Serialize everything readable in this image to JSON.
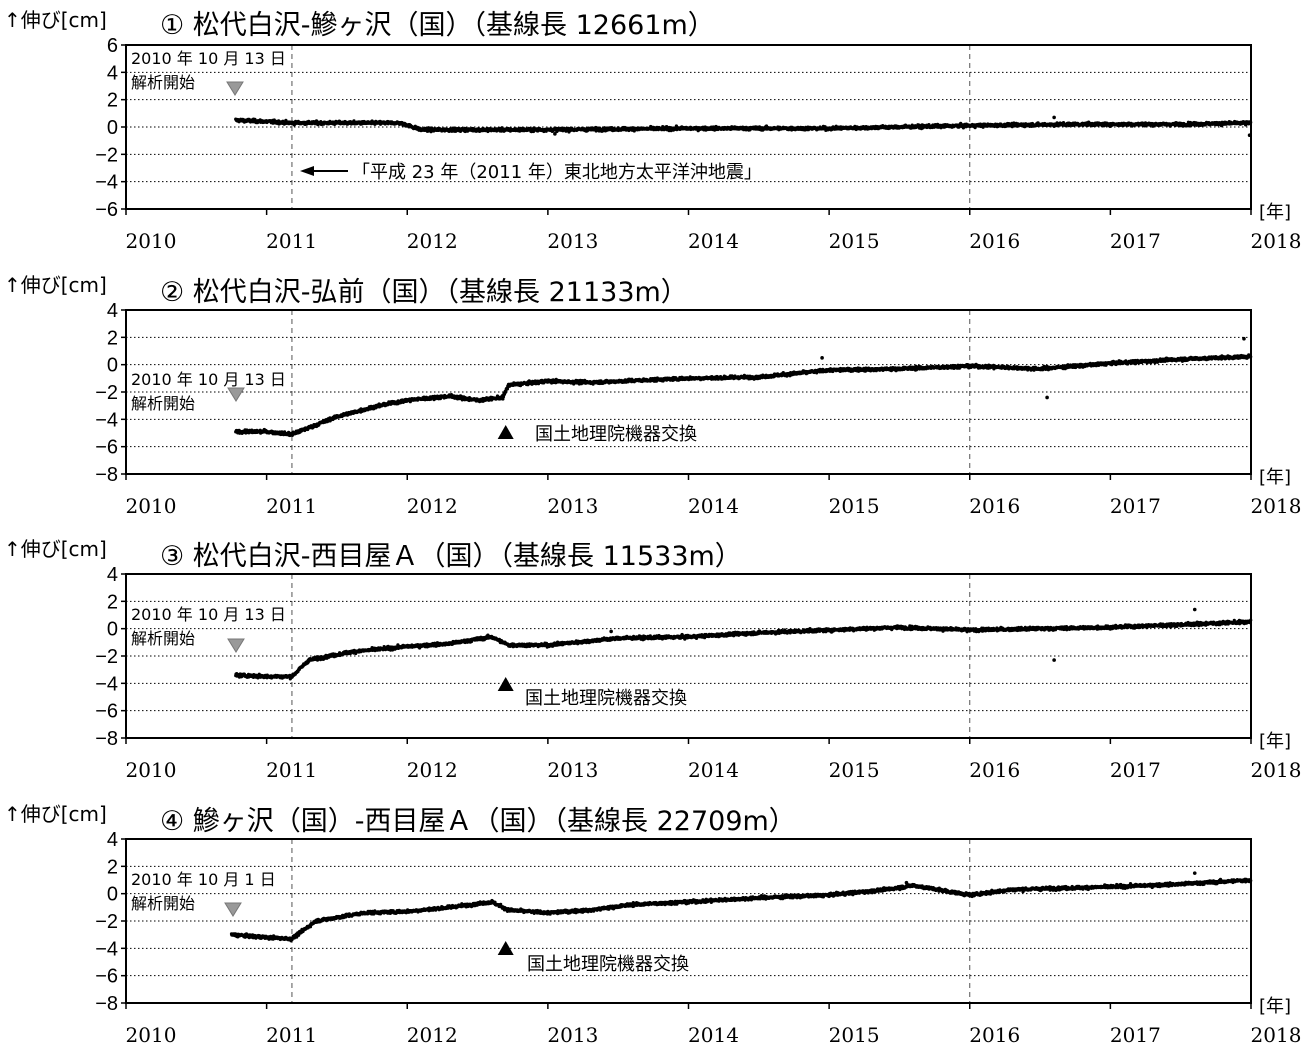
{
  "chart_data": [
    {
      "type": "scatter",
      "title": "① 松代白沢-鰺ヶ沢（国）（基線長 12661m）",
      "ylabel": "↑伸び[cm]",
      "xunit": "[年]",
      "ylim": [
        -6,
        6
      ],
      "yticks": [
        "6",
        "4",
        "2",
        "0",
        "−2",
        "−4",
        "−6"
      ],
      "xlim": [
        2010,
        2018
      ],
      "xticks": [
        "2010",
        "2011",
        "2012",
        "2013",
        "2014",
        "2015",
        "2016",
        "2017",
        "2018"
      ],
      "grid": "horizontal dotted",
      "start_date": "2010 年 10 月 13 日",
      "start_label": "解析開始",
      "event_label": "「平成 23 年（2011 年）東北地方太平洋沖地震」",
      "series": [
        {
          "x": [
            2010.78,
            2011.0,
            2011.18,
            2011.5,
            2011.95,
            2012.1,
            2013.0,
            2014.0,
            2015.0,
            2016.0,
            2016.7,
            2017.5,
            2018.0
          ],
          "y": [
            0.5,
            0.4,
            0.3,
            0.3,
            0.3,
            -0.2,
            -0.2,
            -0.1,
            -0.1,
            0.1,
            0.2,
            0.2,
            0.3
          ]
        }
      ],
      "outliers": [
        [
          2016.6,
          0.7
        ],
        [
          2013.05,
          -0.5
        ],
        [
          2017.99,
          -0.6
        ]
      ]
    },
    {
      "type": "scatter",
      "title": "② 松代白沢-弘前（国）（基線長 21133m）",
      "ylabel": "↑伸び[cm]",
      "xunit": "[年]",
      "ylim": [
        -8,
        4
      ],
      "yticks": [
        "4",
        "2",
        "0",
        "−2",
        "−4",
        "−6",
        "−8"
      ],
      "xlim": [
        2010,
        2018
      ],
      "xticks": [
        "2010",
        "2011",
        "2012",
        "2013",
        "2014",
        "2015",
        "2016",
        "2017",
        "2018"
      ],
      "grid": "horizontal dotted",
      "start_date": "2010 年 10 月 13 日",
      "start_label": "解析開始",
      "equip_label": "国土地理院機器交換",
      "equip_x": 2012.7,
      "series": [
        {
          "x": [
            2010.78,
            2011.0,
            2011.18,
            2011.5,
            2011.8,
            2012.0,
            2012.3,
            2012.5,
            2012.68,
            2012.72,
            2013.0,
            2013.3,
            2014.0,
            2014.5,
            2015.0,
            2015.5,
            2016.0,
            2016.5,
            2017.0,
            2017.5,
            2018.0
          ],
          "y": [
            -4.9,
            -4.9,
            -5.1,
            -3.8,
            -3.0,
            -2.6,
            -2.3,
            -2.6,
            -2.4,
            -1.5,
            -1.2,
            -1.3,
            -1.0,
            -0.9,
            -0.4,
            -0.3,
            -0.1,
            -0.3,
            0.1,
            0.4,
            0.6
          ]
        }
      ],
      "outliers": [
        [
          2016.55,
          -2.4
        ],
        [
          2017.95,
          1.9
        ],
        [
          2014.95,
          0.5
        ]
      ]
    },
    {
      "type": "scatter",
      "title": "③ 松代白沢-西目屋Ａ（国）（基線長 11533m）",
      "ylabel": "↑伸び[cm]",
      "xunit": "[年]",
      "ylim": [
        -8,
        4
      ],
      "yticks": [
        "4",
        "2",
        "0",
        "−2",
        "−4",
        "−6",
        "−8"
      ],
      "xlim": [
        2010,
        2018
      ],
      "xticks": [
        "2010",
        "2011",
        "2012",
        "2013",
        "2014",
        "2015",
        "2016",
        "2017",
        "2018"
      ],
      "grid": "horizontal dotted",
      "start_date": "2010 年 10 月 13 日",
      "start_label": "解析開始",
      "equip_label": "国土地理院機器交換",
      "equip_x": 2012.7,
      "series": [
        {
          "x": [
            2010.78,
            2011.0,
            2011.18,
            2011.3,
            2011.6,
            2012.0,
            2012.3,
            2012.6,
            2012.72,
            2013.0,
            2013.5,
            2014.0,
            2014.5,
            2015.0,
            2015.5,
            2016.0,
            2016.5,
            2017.0,
            2017.5,
            2018.0
          ],
          "y": [
            -3.4,
            -3.5,
            -3.5,
            -2.3,
            -1.7,
            -1.3,
            -1.1,
            -0.6,
            -1.2,
            -1.2,
            -0.7,
            -0.6,
            -0.3,
            -0.1,
            0.1,
            -0.1,
            0.0,
            0.1,
            0.3,
            0.5
          ]
        }
      ],
      "outliers": [
        [
          2016.6,
          -2.3
        ],
        [
          2017.6,
          1.4
        ],
        [
          2013.45,
          -0.2
        ]
      ]
    },
    {
      "type": "scatter",
      "title": "④ 鰺ヶ沢（国）-西目屋Ａ（国）（基線長 22709m）",
      "ylabel": "↑伸び[cm]",
      "xunit": "[年]",
      "ylim": [
        -8,
        4
      ],
      "yticks": [
        "4",
        "2",
        "0",
        "−2",
        "−4",
        "−6",
        "−8"
      ],
      "xlim": [
        2010,
        2018
      ],
      "xticks": [
        "2010",
        "2011",
        "2012",
        "2013",
        "2014",
        "2015",
        "2016",
        "2017",
        "2018"
      ],
      "grid": "horizontal dotted",
      "start_date": "2010 年 10 月 1 日",
      "start_label": "解析開始",
      "equip_label": "国土地理院機器交換",
      "equip_x": 2012.7,
      "series": [
        {
          "x": [
            2010.75,
            2011.0,
            2011.18,
            2011.35,
            2011.7,
            2012.0,
            2012.3,
            2012.6,
            2012.72,
            2013.0,
            2013.3,
            2013.6,
            2014.0,
            2014.5,
            2015.0,
            2015.4,
            2015.6,
            2016.0,
            2016.3,
            2017.0,
            2017.5,
            2018.0
          ],
          "y": [
            -3.0,
            -3.2,
            -3.3,
            -2.0,
            -1.4,
            -1.3,
            -1.0,
            -0.6,
            -1.2,
            -1.4,
            -1.2,
            -0.8,
            -0.6,
            -0.3,
            -0.1,
            0.3,
            0.6,
            -0.1,
            0.3,
            0.5,
            0.7,
            1.0
          ]
        }
      ],
      "outliers": [
        [
          2017.6,
          1.5
        ],
        [
          2015.55,
          0.8
        ]
      ]
    }
  ],
  "colors": {
    "data": "#000000",
    "start_marker": "#999999",
    "equip_marker": "#000000",
    "grid": "#000000"
  }
}
